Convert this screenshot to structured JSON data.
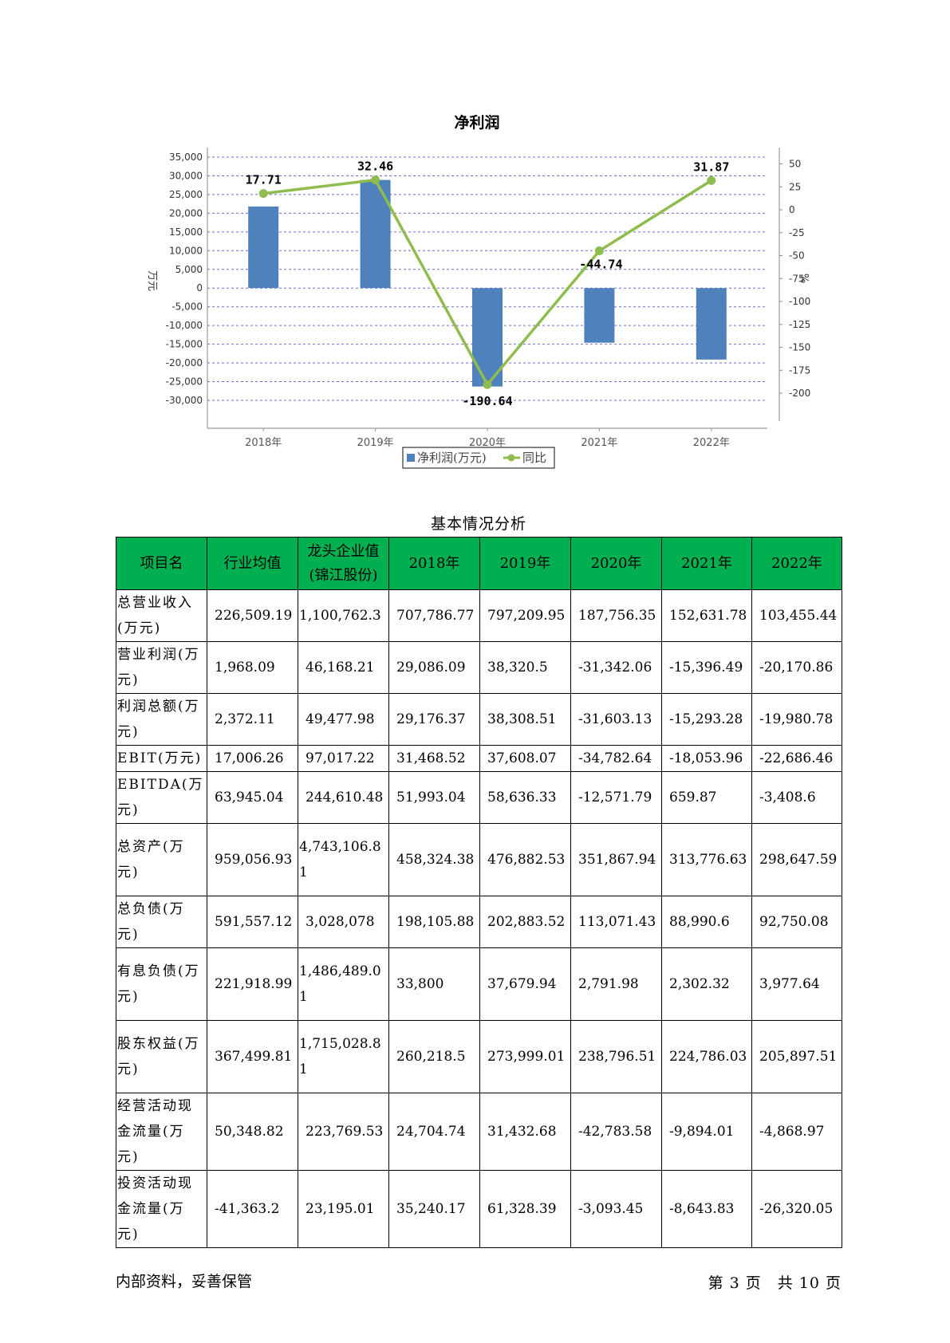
{
  "chart_data": {
    "type": "bar",
    "title": "净利润",
    "ylabel_left": "万元",
    "ylabel_right": "%",
    "categories": [
      "2018年",
      "2019年",
      "2020年",
      "2021年",
      "2022年"
    ],
    "ylim_left": [
      -30000,
      35000
    ],
    "yticks_left": [
      "35,000",
      "30,000",
      "25,000",
      "20,000",
      "15,000",
      "10,000",
      "5,000",
      "0",
      "-5,000",
      "-10,000",
      "-15,000",
      "-20,000",
      "-25,000",
      "-30,000"
    ],
    "ylim_right": [
      -200,
      50
    ],
    "yticks_right": [
      "50",
      "25",
      "0",
      "-25",
      "-50",
      "-75",
      "-100",
      "-125",
      "-150",
      "-175",
      "-200"
    ],
    "grid": true,
    "legend_position": "bottom",
    "series": [
      {
        "name": "净利润(万元)",
        "kind": "bar",
        "color": "#4f81bd",
        "axis": "left",
        "values": [
          21800,
          28900,
          -26300,
          -14600,
          -19100
        ]
      },
      {
        "name": "同比",
        "kind": "line",
        "color": "#8fbc4f",
        "axis": "right",
        "values": [
          17.71,
          32.46,
          -190.64,
          -44.74,
          31.87
        ],
        "labels": [
          "17.71",
          "32.46",
          "-190.64",
          "-44.74",
          "31.87"
        ]
      }
    ]
  },
  "table": {
    "caption": "基本情况分析",
    "header_color": "#00b050",
    "headers": [
      "项目名",
      "行业均值",
      "龙头企业值(锦江股份)",
      "2018年",
      "2019年",
      "2020年",
      "2021年",
      "2022年"
    ],
    "rows": [
      [
        "总营业收入(万元)",
        "226,509.19",
        "1,100,762.3",
        "707,786.77",
        "797,209.95",
        "187,756.35",
        "152,631.78",
        "103,455.44"
      ],
      [
        "营业利润(万元)",
        "1,968.09",
        "46,168.21",
        "29,086.09",
        "38,320.5",
        "-31,342.06",
        "-15,396.49",
        "-20,170.86"
      ],
      [
        "利润总额(万元)",
        "2,372.11",
        "49,477.98",
        "29,176.37",
        "38,308.51",
        "-31,603.13",
        "-15,293.28",
        "-19,980.78"
      ],
      [
        "EBIT(万元)",
        "17,006.26",
        "97,017.22",
        "31,468.52",
        "37,608.07",
        "-34,782.64",
        "-18,053.96",
        "-22,686.46"
      ],
      [
        "EBITDA(万元)",
        "63,945.04",
        "244,610.48",
        "51,993.04",
        "58,636.33",
        "-12,571.79",
        "659.87",
        "-3,408.6"
      ],
      [
        "总资产(万元)",
        "959,056.93",
        "4,743,106.81",
        "458,324.38",
        "476,882.53",
        "351,867.94",
        "313,776.63",
        "298,647.59"
      ],
      [
        "总负债(万元)",
        "591,557.12",
        "3,028,078",
        "198,105.88",
        "202,883.52",
        "113,071.43",
        "88,990.6",
        "92,750.08"
      ],
      [
        "有息负债(万元)",
        "221,918.99",
        "1,486,489.01",
        "33,800",
        "37,679.94",
        "2,791.98",
        "2,302.32",
        "3,977.64"
      ],
      [
        "股东权益(万元)",
        "367,499.81",
        "1,715,028.81",
        "260,218.5",
        "273,999.01",
        "238,796.51",
        "224,786.03",
        "205,897.51"
      ],
      [
        "经营活动现金流量(万元)",
        "50,348.82",
        "223,769.53",
        "24,704.74",
        "31,432.68",
        "-42,783.58",
        "-9,894.01",
        "-4,868.97"
      ],
      [
        "投资活动现金流量(万元)",
        "-41,363.2",
        "23,195.01",
        "35,240.17",
        "61,328.39",
        "-3,093.45",
        "-8,643.83",
        "-26,320.05"
      ]
    ]
  },
  "footer": {
    "left": "内部资料，妥善保管",
    "right": "第 3 页　共 10 页"
  }
}
